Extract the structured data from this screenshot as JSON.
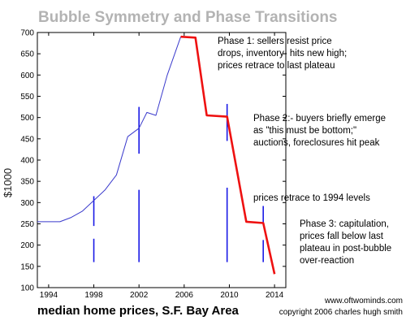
{
  "chart_data": {
    "type": "line",
    "title": "Bubble Symmetry and Phase Transitions",
    "caption": "median home prices, S.F. Bay Area",
    "ylabel": "$1000",
    "xlim": [
      1993,
      2015
    ],
    "ylim": [
      100,
      700
    ],
    "x_ticks": [
      1994,
      1998,
      2002,
      2006,
      2010,
      2014
    ],
    "y_ticks": [
      100,
      150,
      200,
      250,
      300,
      350,
      400,
      450,
      500,
      550,
      600,
      650,
      700
    ],
    "series": [
      {
        "color": "#3a3acc",
        "x": [
          1993,
          1995,
          1996,
          1997,
          1998,
          1999,
          2000,
          2001,
          2002,
          2002.7,
          2003.5,
          2004.5,
          2005.7
        ],
        "values": [
          255,
          255,
          265,
          280,
          305,
          330,
          365,
          455,
          475,
          512,
          505,
          600,
          690
        ]
      },
      {
        "color": "#ee1111",
        "x": [
          2005.7,
          2007,
          2008,
          2009.8,
          2011.5,
          2013,
          2014
        ],
        "values": [
          690,
          688,
          505,
          502,
          255,
          252,
          132
        ]
      }
    ],
    "markers": [
      {
        "x": 1998,
        "top": 315,
        "bottom": 160,
        "gap": [
          245,
          215
        ]
      },
      {
        "x": 2002,
        "top": 525,
        "bottom": 160,
        "gap": [
          415,
          330
        ]
      },
      {
        "x": 2009.8,
        "top": 532,
        "bottom": 160,
        "gap": [
          445,
          335
        ]
      },
      {
        "x": 2013,
        "top": 292,
        "bottom": 160,
        "gap": [
          252,
          212
        ]
      }
    ],
    "annotations": [
      {
        "id": "phase1",
        "lines": [
          "Phase 1: sellers  resist price",
          "drops, inventory- hits new high;",
          "prices retrace to  last plateau"
        ]
      },
      {
        "id": "phase2",
        "lines": [
          "Phase 2:- buyers briefly emerge",
          "as  \"this  must be bottom;\"",
          "auctions, foreclosures hit peak"
        ]
      },
      {
        "id": "retrace",
        "lines": [
          "prices retrace to 1994 levels"
        ]
      },
      {
        "id": "phase3",
        "lines": [
          "Phase 3: capitulation,",
          "prices fall below last",
          "plateau in post-bubble",
          "over-reaction"
        ]
      }
    ],
    "credits": [
      "www.oftwominds.com",
      "copyright 2006 charles hugh smith"
    ]
  }
}
